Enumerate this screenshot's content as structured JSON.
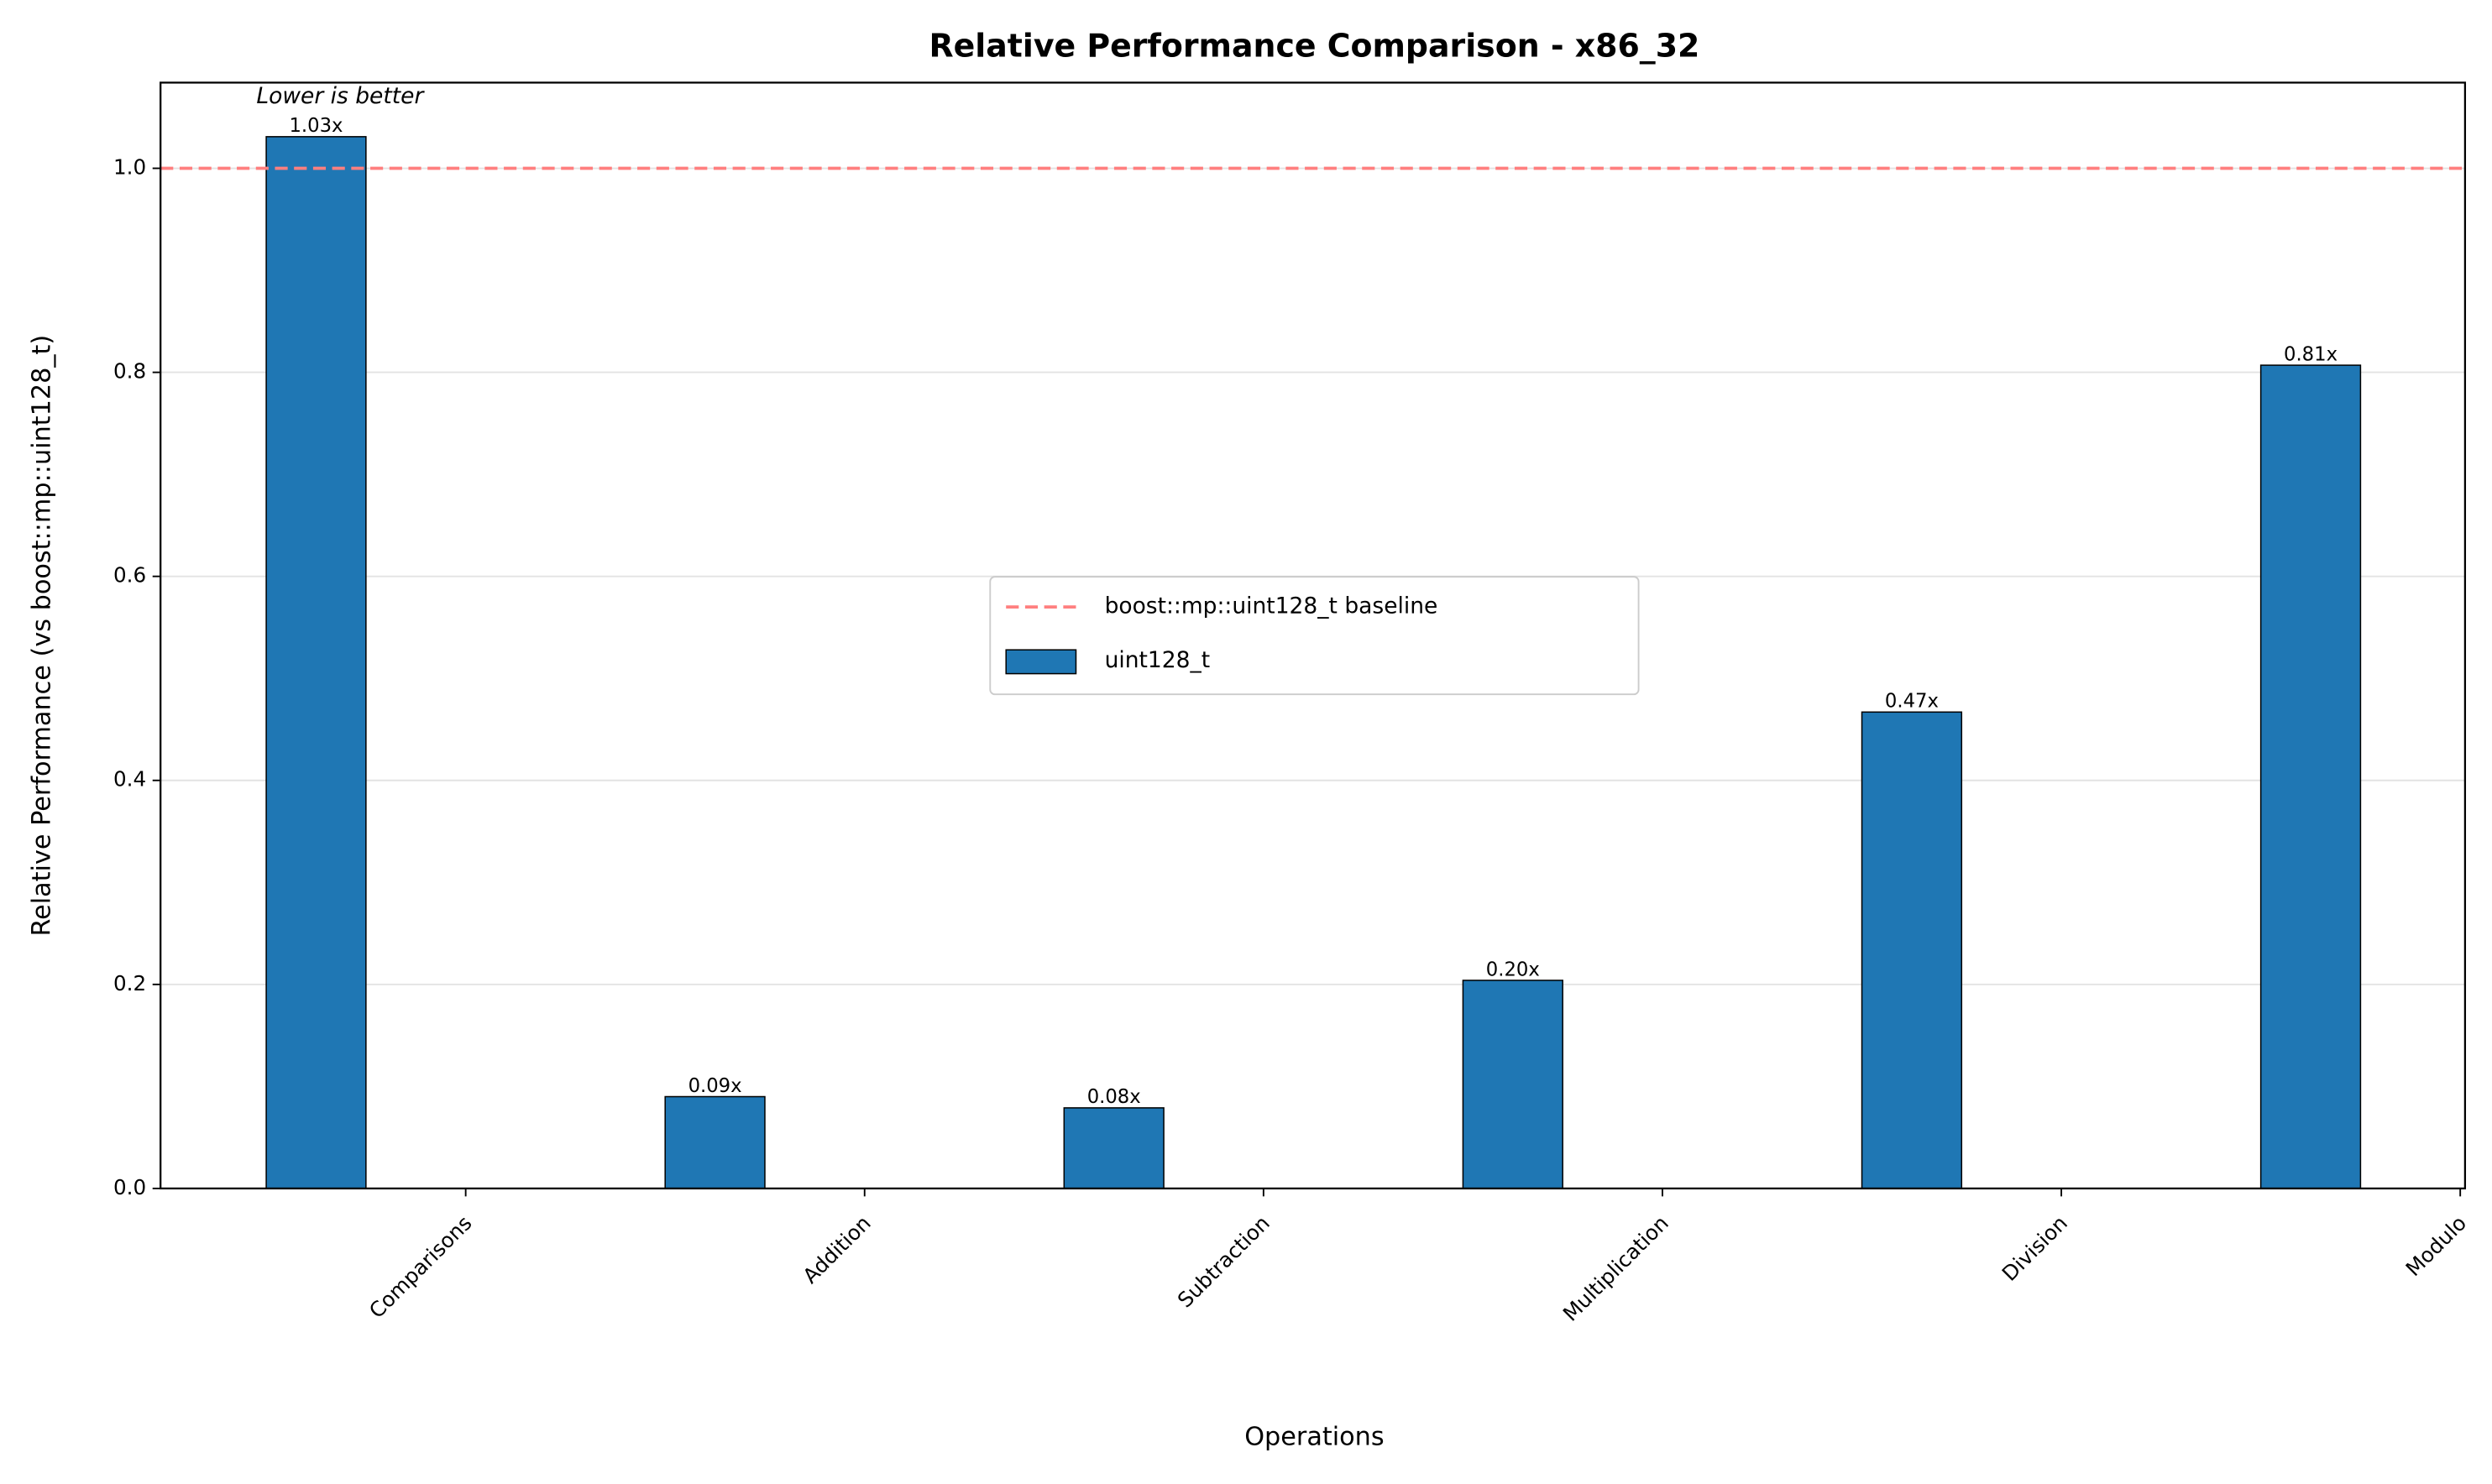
{
  "chart_data": {
    "type": "bar",
    "title": "Relative Performance Comparison - x86_32",
    "xlabel": "Operations",
    "ylabel": "Relative Performance (vs boost::mp::uint128_t)",
    "annotation": "Lower is better",
    "categories": [
      "Comparisons",
      "Addition",
      "Subtraction",
      "Multiplication",
      "Division",
      "Modulo"
    ],
    "series": [
      {
        "name": "uint128_t",
        "color": "#1f77b4",
        "values": [
          1.031,
          0.09,
          0.079,
          0.204,
          0.467,
          0.807
        ],
        "value_labels": [
          "1.03x",
          "0.09x",
          "0.08x",
          "0.20x",
          "0.47x",
          "0.81x"
        ]
      }
    ],
    "reference_line": {
      "name": "boost::mp::uint128_t baseline",
      "value": 1.0,
      "color": "#ff7f7f"
    },
    "ylim": [
      0,
      1.084
    ],
    "yticks": [
      {
        "value": 0,
        "label": "0.0"
      },
      0.2,
      0.4,
      0.6,
      0.8,
      {
        "value": 1,
        "label": "1.0"
      }
    ],
    "grid": true,
    "legend": "center"
  }
}
